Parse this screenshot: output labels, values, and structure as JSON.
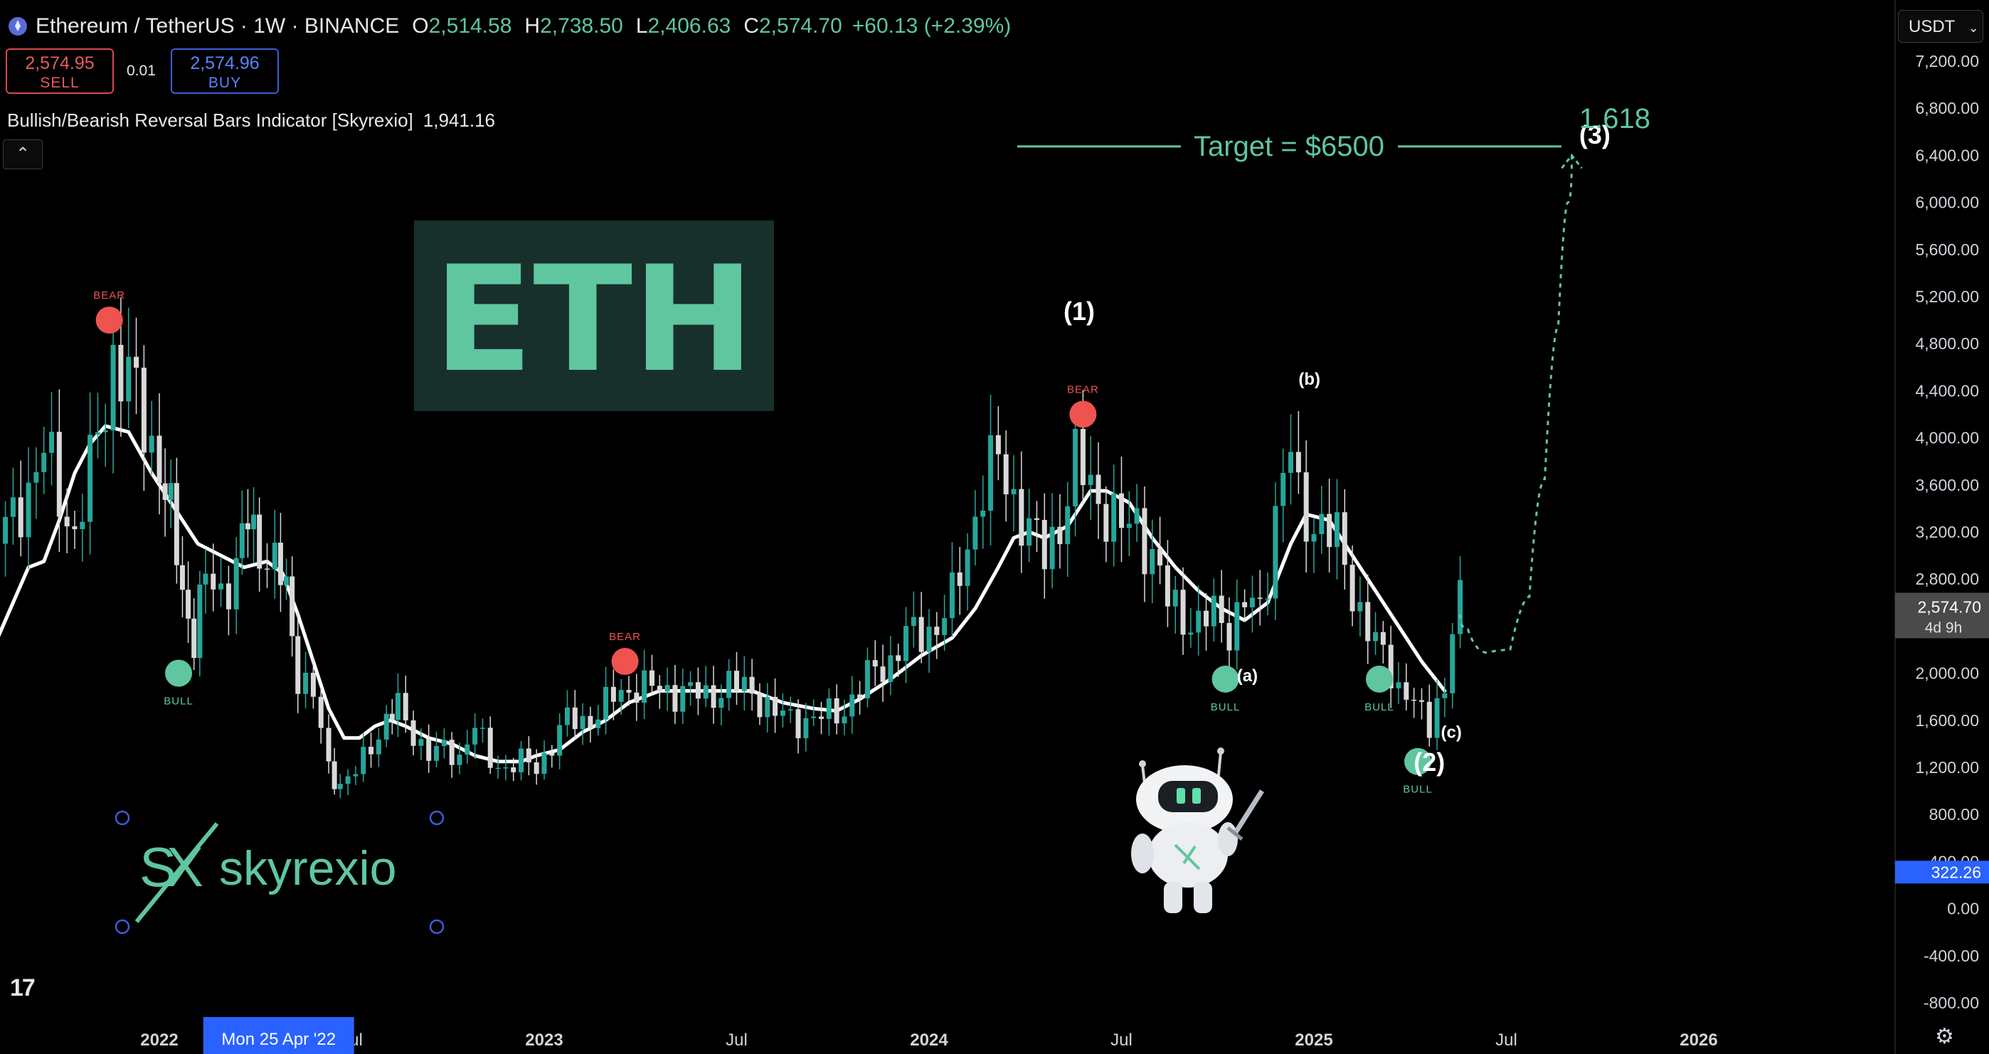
{
  "header": {
    "symbol": "Ethereum / TetherUS · 1W · BINANCE",
    "open_label": "O",
    "open": "2,514.58",
    "high_label": "H",
    "high": "2,738.50",
    "low_label": "L",
    "low": "2,406.63",
    "close_label": "C",
    "close": "2,574.70",
    "change": "+60.13 (+2.39%)"
  },
  "trade": {
    "sell_price": "2,574.95",
    "sell_label": "SELL",
    "spread": "0.01",
    "buy_price": "2,574.96",
    "buy_label": "BUY"
  },
  "indicator": {
    "name": "Bullish/Bearish Reversal Bars Indicator [Skyrexio]",
    "value": "1,941.16"
  },
  "collapse_icon": "chevron-up-icon",
  "currency": {
    "label": "USDT",
    "icon": "chevron-down-icon"
  },
  "logo_tv": "tradingview-logo",
  "settings_icon": "gear-icon",
  "chart_data": {
    "type": "candlestick",
    "timeframe": "1W",
    "y_axis": {
      "min": -800,
      "max": 7200,
      "step": 400,
      "tick_labels": [
        "7,200.00",
        "6,800.00",
        "6,400.00",
        "6,000.00",
        "5,600.00",
        "5,200.00",
        "4,800.00",
        "4,400.00",
        "4,000.00",
        "3,600.00",
        "3,200.00",
        "2,800.00",
        "2,400.00",
        "2,000.00",
        "1,600.00",
        "1,200.00",
        "800.00",
        "400.00",
        "0.00",
        "-400.00",
        "-800.00"
      ],
      "last_price": {
        "value": 2574.7,
        "label": "2,574.70",
        "countdown": "4d 9h"
      },
      "indicator_label": {
        "value": 322.26,
        "label": "322.26"
      }
    },
    "x_axis": {
      "labels": [
        {
          "t": 2022.0,
          "label": "2022",
          "bold": true
        },
        {
          "t": 2022.5,
          "label": "Jul",
          "bold": false
        },
        {
          "t": 2023.0,
          "label": "2023",
          "bold": true
        },
        {
          "t": 2023.5,
          "label": "Jul",
          "bold": false
        },
        {
          "t": 2024.0,
          "label": "2024",
          "bold": true
        },
        {
          "t": 2024.5,
          "label": "Jul",
          "bold": false
        },
        {
          "t": 2025.0,
          "label": "2025",
          "bold": true
        },
        {
          "t": 2025.5,
          "label": "Jul",
          "bold": false
        },
        {
          "t": 2026.0,
          "label": "2026",
          "bold": true
        }
      ],
      "crosshair": {
        "t": 2022.31,
        "label": "Mon 25 Apr '22"
      }
    },
    "price_path": [
      [
        2021.58,
        3100
      ],
      [
        2021.62,
        3300
      ],
      [
        2021.66,
        3600
      ],
      [
        2021.7,
        3900
      ],
      [
        2021.74,
        3500
      ],
      [
        2021.78,
        3200
      ],
      [
        2021.82,
        3700
      ],
      [
        2021.86,
        4300
      ],
      [
        2021.88,
        4700
      ],
      [
        2021.92,
        4500
      ],
      [
        2021.96,
        4100
      ],
      [
        2022.0,
        3800
      ],
      [
        2022.03,
        3300
      ],
      [
        2022.06,
        2700
      ],
      [
        2022.09,
        2300
      ],
      [
        2022.12,
        2800
      ],
      [
        2022.16,
        2700
      ],
      [
        2022.2,
        2900
      ],
      [
        2022.23,
        3300
      ],
      [
        2022.26,
        3100
      ],
      [
        2022.3,
        2900
      ],
      [
        2022.33,
        2700
      ],
      [
        2022.36,
        2000
      ],
      [
        2022.4,
        1800
      ],
      [
        2022.44,
        1200
      ],
      [
        2022.47,
        1050
      ],
      [
        2022.51,
        1150
      ],
      [
        2022.55,
        1400
      ],
      [
        2022.59,
        1600
      ],
      [
        2022.62,
        1700
      ],
      [
        2022.66,
        1500
      ],
      [
        2022.7,
        1300
      ],
      [
        2022.74,
        1350
      ],
      [
        2022.78,
        1300
      ],
      [
        2022.82,
        1550
      ],
      [
        2022.86,
        1250
      ],
      [
        2022.9,
        1200
      ],
      [
        2022.94,
        1250
      ],
      [
        2022.98,
        1200
      ],
      [
        2023.02,
        1400
      ],
      [
        2023.06,
        1600
      ],
      [
        2023.1,
        1600
      ],
      [
        2023.14,
        1650
      ],
      [
        2023.18,
        1800
      ],
      [
        2023.24,
        1900
      ],
      [
        2023.3,
        1850
      ],
      [
        2023.36,
        1850
      ],
      [
        2023.42,
        1800
      ],
      [
        2023.48,
        1900
      ],
      [
        2023.54,
        1850
      ],
      [
        2023.6,
        1650
      ],
      [
        2023.66,
        1600
      ],
      [
        2023.72,
        1620
      ],
      [
        2023.78,
        1700
      ],
      [
        2023.82,
        1850
      ],
      [
        2023.86,
        2050
      ],
      [
        2023.9,
        2100
      ],
      [
        2023.94,
        2300
      ],
      [
        2023.98,
        2350
      ],
      [
        2024.02,
        2400
      ],
      [
        2024.06,
        2600
      ],
      [
        2024.1,
        3100
      ],
      [
        2024.14,
        3600
      ],
      [
        2024.18,
        3800
      ],
      [
        2024.22,
        3500
      ],
      [
        2024.26,
        3200
      ],
      [
        2024.3,
        3000
      ],
      [
        2024.34,
        3300
      ],
      [
        2024.38,
        3750
      ],
      [
        2024.42,
        3600
      ],
      [
        2024.46,
        3400
      ],
      [
        2024.5,
        3200
      ],
      [
        2024.54,
        3300
      ],
      [
        2024.58,
        3000
      ],
      [
        2024.62,
        2600
      ],
      [
        2024.66,
        2500
      ],
      [
        2024.7,
        2400
      ],
      [
        2024.74,
        2500
      ],
      [
        2024.78,
        2400
      ],
      [
        2024.82,
        2600
      ],
      [
        2024.86,
        2500
      ],
      [
        2024.88,
        2900
      ],
      [
        2024.9,
        3400
      ],
      [
        2024.92,
        3700
      ],
      [
        2024.94,
        3900
      ],
      [
        2024.96,
        3400
      ],
      [
        2024.98,
        3300
      ],
      [
        2025.02,
        3300
      ],
      [
        2025.06,
        3100
      ],
      [
        2025.1,
        2700
      ],
      [
        2025.14,
        2400
      ],
      [
        2025.18,
        2100
      ],
      [
        2025.22,
        1900
      ],
      [
        2025.26,
        1800
      ],
      [
        2025.28,
        1600
      ],
      [
        2025.3,
        1500
      ],
      [
        2025.32,
        1800
      ],
      [
        2025.34,
        1850
      ],
      [
        2025.36,
        2500
      ],
      [
        2025.38,
        2574.7
      ]
    ],
    "moving_average": [
      [
        2021.58,
        2300
      ],
      [
        2021.62,
        2600
      ],
      [
        2021.66,
        2900
      ],
      [
        2021.7,
        2950
      ],
      [
        2021.74,
        3300
      ],
      [
        2021.78,
        3700
      ],
      [
        2021.82,
        3950
      ],
      [
        2021.86,
        4100
      ],
      [
        2021.92,
        4050
      ],
      [
        2021.98,
        3700
      ],
      [
        2022.04,
        3400
      ],
      [
        2022.1,
        3100
      ],
      [
        2022.16,
        3000
      ],
      [
        2022.22,
        2900
      ],
      [
        2022.28,
        2950
      ],
      [
        2022.32,
        2850
      ],
      [
        2022.36,
        2500
      ],
      [
        2022.4,
        2100
      ],
      [
        2022.44,
        1700
      ],
      [
        2022.48,
        1450
      ],
      [
        2022.52,
        1450
      ],
      [
        2022.56,
        1550
      ],
      [
        2022.6,
        1600
      ],
      [
        2022.64,
        1550
      ],
      [
        2022.7,
        1450
      ],
      [
        2022.76,
        1400
      ],
      [
        2022.82,
        1300
      ],
      [
        2022.88,
        1250
      ],
      [
        2022.94,
        1250
      ],
      [
        2022.98,
        1300
      ],
      [
        2023.04,
        1350
      ],
      [
        2023.1,
        1500
      ],
      [
        2023.16,
        1600
      ],
      [
        2023.22,
        1750
      ],
      [
        2023.3,
        1850
      ],
      [
        2023.38,
        1850
      ],
      [
        2023.46,
        1850
      ],
      [
        2023.54,
        1850
      ],
      [
        2023.62,
        1750
      ],
      [
        2023.7,
        1700
      ],
      [
        2023.76,
        1680
      ],
      [
        2023.82,
        1780
      ],
      [
        2023.9,
        1950
      ],
      [
        2023.98,
        2150
      ],
      [
        2024.06,
        2300
      ],
      [
        2024.12,
        2550
      ],
      [
        2024.18,
        2900
      ],
      [
        2024.22,
        3150
      ],
      [
        2024.26,
        3200
      ],
      [
        2024.3,
        3150
      ],
      [
        2024.36,
        3250
      ],
      [
        2024.42,
        3550
      ],
      [
        2024.46,
        3550
      ],
      [
        2024.52,
        3450
      ],
      [
        2024.58,
        3150
      ],
      [
        2024.64,
        2900
      ],
      [
        2024.7,
        2700
      ],
      [
        2024.76,
        2550
      ],
      [
        2024.82,
        2450
      ],
      [
        2024.88,
        2600
      ],
      [
        2024.94,
        3100
      ],
      [
        2024.98,
        3350
      ],
      [
        2025.04,
        3300
      ],
      [
        2025.1,
        3000
      ],
      [
        2025.16,
        2700
      ],
      [
        2025.22,
        2400
      ],
      [
        2025.28,
        2100
      ],
      [
        2025.34,
        1850
      ]
    ],
    "signals": [
      {
        "type": "BEAR",
        "t": 2021.87,
        "price": 5000
      },
      {
        "type": "BULL",
        "t": 2022.05,
        "price": 2000
      },
      {
        "type": "BEAR",
        "t": 2023.21,
        "price": 2100
      },
      {
        "type": "BEAR",
        "t": 2024.4,
        "price": 4200
      },
      {
        "type": "BULL",
        "t": 2024.77,
        "price": 1950
      },
      {
        "type": "BULL",
        "t": 2025.17,
        "price": 1950
      },
      {
        "type": "BULL",
        "t": 2025.27,
        "price": 1250
      }
    ],
    "wave_labels": [
      {
        "label": "(1)",
        "t": 2024.39,
        "price": 5000
      },
      {
        "label": "(a)",
        "t": 2024.8,
        "price": 1930
      },
      {
        "label": "(b)",
        "t": 2024.96,
        "price": 4450
      },
      {
        "label": "(c)",
        "t": 2025.33,
        "price": 1450
      },
      {
        "label": "(2)",
        "t": 2025.3,
        "price": 1170
      },
      {
        "label": "(3)",
        "t": 2025.73,
        "price": 6500
      }
    ],
    "projection": [
      [
        2025.38,
        2500
      ],
      [
        2025.42,
        2250
      ],
      [
        2025.48,
        2100
      ],
      [
        2025.54,
        2300
      ],
      [
        2025.58,
        3000
      ],
      [
        2025.62,
        4300
      ],
      [
        2025.65,
        5600
      ],
      [
        2025.67,
        6400
      ]
    ],
    "target": {
      "label": "Target = $6500",
      "price": 6500,
      "fib": "1.618"
    },
    "overlay_title": "ETH",
    "brand": "skyrexio"
  }
}
